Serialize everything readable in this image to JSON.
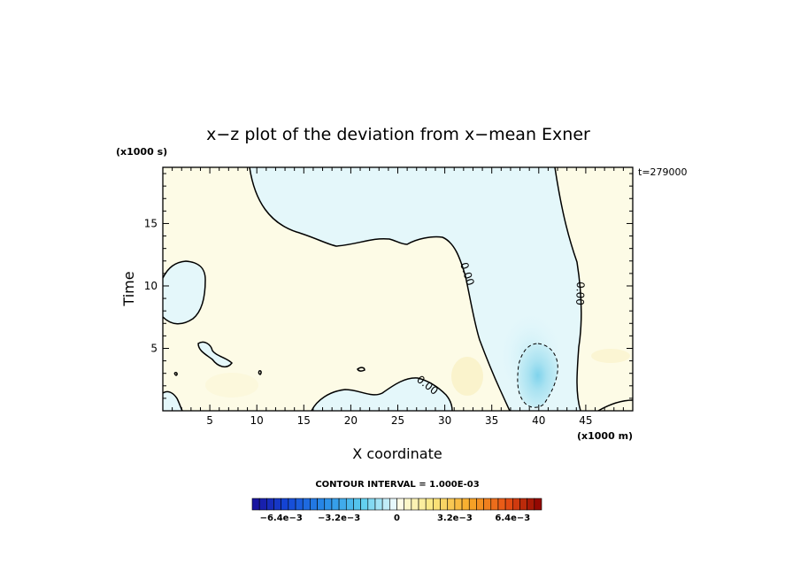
{
  "chart_data": {
    "type": "contour",
    "title": "x−z plot of the deviation from x−mean Exner",
    "xlabel": "X coordinate",
    "ylabel": "Time",
    "x_unit": "(x1000 m)",
    "y_unit": "(x1000 s)",
    "time_label": "t=279000",
    "xlim": [
      0,
      50
    ],
    "ylim": [
      0,
      19.5
    ],
    "x_ticks": [
      5,
      10,
      15,
      20,
      25,
      30,
      35,
      40,
      45
    ],
    "y_ticks": [
      5,
      10,
      15
    ],
    "contour_interval_text": "CONTOUR INTERVAL = 1.000E-03",
    "contour_labels": [
      "0.00",
      "0.00",
      "0.00"
    ],
    "colorbar": {
      "range": [
        -0.008,
        0.008
      ],
      "tick_labels": [
        "−6.4e−3",
        "−3.2e−3",
        "0",
        "3.2e−3",
        "6.4e−3"
      ],
      "tick_values": [
        -0.0064,
        -0.0032,
        0,
        0.0032,
        0.0064
      ],
      "low_color": "#1a0f9a",
      "high_color": "#8b0000"
    },
    "regions": [
      {
        "kind": "negative",
        "level": -0.0003,
        "desc": "central upper band",
        "x_range": [
          9,
          47
        ],
        "y_range": [
          6,
          19.5
        ]
      },
      {
        "kind": "negative",
        "level": -0.0003,
        "desc": "left oval",
        "x_range": [
          0,
          4.5
        ],
        "y_range": [
          6.5,
          12.5
        ]
      },
      {
        "kind": "negative",
        "level": -0.0025,
        "desc": "minimum core",
        "x_center": 39.5,
        "y_center": 2.7
      },
      {
        "kind": "positive",
        "level": 0.0003,
        "desc": "background",
        "x_range": [
          0,
          50
        ],
        "y_range": [
          0,
          19.5
        ]
      }
    ]
  }
}
